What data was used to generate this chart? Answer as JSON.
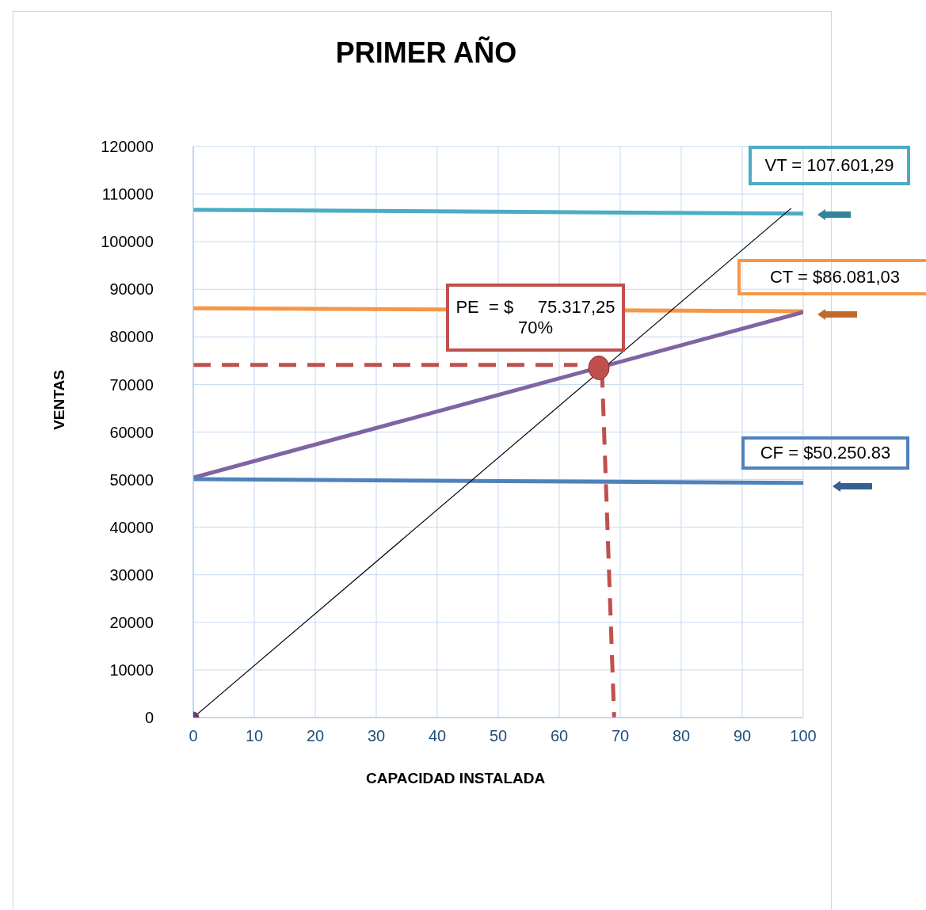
{
  "chart_data": {
    "type": "line",
    "title": "PRIMER  AÑO",
    "xlabel": "CAPACIDAD INSTALADA",
    "ylabel": "VENTAS",
    "xlim": [
      0,
      100
    ],
    "xticks": [
      0,
      10,
      20,
      30,
      40,
      50,
      60,
      70,
      80,
      90,
      100
    ],
    "ylim": [
      0,
      120000
    ],
    "yticks": [
      0,
      10000,
      20000,
      30000,
      40000,
      50000,
      60000,
      70000,
      80000,
      90000,
      100000,
      110000,
      120000
    ],
    "grid": true,
    "marker": "none",
    "line_style": "solid",
    "series": [
      {
        "color": "#4bacc6",
        "x": [
          0,
          100
        ],
        "values": [
          106700,
          105900
        ]
      },
      {
        "color": "#f79646",
        "x": [
          0,
          100
        ],
        "values": [
          86000,
          85400
        ]
      },
      {
        "color": "#8064a2",
        "x": [
          0,
          100
        ],
        "values": [
          50400,
          85200
        ]
      },
      {
        "color": "#4f81bd",
        "x": [
          0,
          100
        ],
        "values": [
          50100,
          49300
        ]
      },
      {
        "color": "#000000",
        "x": [
          0,
          98
        ],
        "values": [
          0,
          107000
        ]
      },
      {
        "color": "#c0504d",
        "line_style": "dashed",
        "x": [
          0,
          63
        ],
        "values": [
          74100,
          74100
        ]
      },
      {
        "color": "#c0504d",
        "line_style": "dashed",
        "x": [
          67,
          69
        ],
        "values": [
          73000,
          0
        ]
      },
      {
        "type": "scatter",
        "marker": "circle",
        "color": "#c0504d",
        "x": [
          66.5
        ],
        "values": [
          73500
        ]
      },
      {
        "type": "scatter",
        "marker": "circle",
        "color": "#5f3a8a",
        "x": [
          0
        ],
        "values": [
          0
        ]
      }
    ],
    "annotations": [
      "VT = 107.601,29",
      "CT = $86.081,03",
      "CF = $50.250.83",
      "PE  = $     75.317,25\n70%"
    ]
  }
}
